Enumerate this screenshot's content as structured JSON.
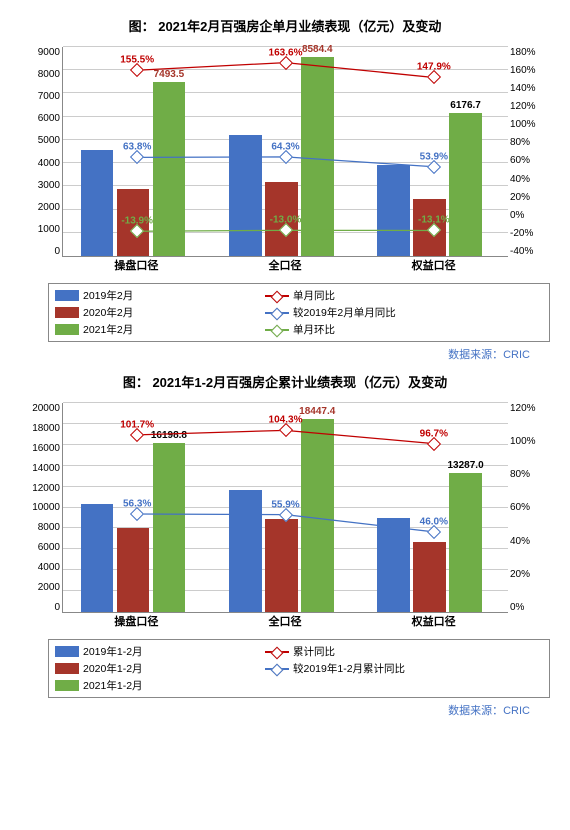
{
  "source_text": "数据来源：CRIC",
  "source_color": "#4472c4",
  "chart1": {
    "title": "图： 2021年2月百强房企单月业绩表现（亿元）及变动",
    "categories": [
      "操盘口径",
      "全口径",
      "权益口径"
    ],
    "left_axis": {
      "max": 9000,
      "step": 1000,
      "ticks": [
        "0",
        "1000",
        "2000",
        "3000",
        "4000",
        "5000",
        "6000",
        "7000",
        "8000",
        "9000"
      ]
    },
    "right_axis": {
      "min": -40,
      "max": 180,
      "step": 20,
      "ticks": [
        "-40%",
        "-20%",
        "0%",
        "20%",
        "40%",
        "60%",
        "80%",
        "100%",
        "120%",
        "140%",
        "160%",
        "180%"
      ]
    },
    "bars": [
      {
        "label": "2019年2月",
        "color": "#4472c4",
        "values": [
          4550,
          5200,
          3900
        ]
      },
      {
        "label": "2020年2月",
        "color": "#a5352a",
        "values": [
          2900,
          3200,
          2450
        ]
      },
      {
        "label": "2021年2月",
        "color": "#70ad47",
        "values": [
          7493.5,
          8584.4,
          6176.7
        ],
        "show_labels": [
          "7493.5",
          "8584.4",
          "6176.7"
        ],
        "label_colors": [
          "#a5352a",
          "#a5352a",
          "#000"
        ]
      }
    ],
    "lines": [
      {
        "label": "单月同比",
        "color": "#c00000",
        "values": [
          155.5,
          163.6,
          147.9
        ],
        "labels": [
          "155.5%",
          "163.6%",
          "147.9%"
        ],
        "label_color": "#c00000"
      },
      {
        "label": "较2019年2月单月同比",
        "color": "#4472c4",
        "values": [
          63.8,
          64.3,
          53.9
        ],
        "labels": [
          "63.8%",
          "64.3%",
          "53.9%"
        ],
        "label_color": "#4472c4"
      },
      {
        "label": "单月环比",
        "color": "#70ad47",
        "values": [
          -13.9,
          -13.0,
          -13.1
        ],
        "labels": [
          "-13.9%",
          "-13.0%",
          "-13.1%"
        ],
        "label_color": "#70ad47"
      }
    ]
  },
  "chart2": {
    "title": "图： 2021年1-2月百强房企累计业绩表现（亿元）及变动",
    "categories": [
      "操盘口径",
      "全口径",
      "权益口径"
    ],
    "left_axis": {
      "max": 20000,
      "step": 2000,
      "ticks": [
        "0",
        "2000",
        "4000",
        "6000",
        "8000",
        "10000",
        "12000",
        "14000",
        "16000",
        "18000",
        "20000"
      ]
    },
    "right_axis": {
      "min": 0,
      "max": 120,
      "step": 20,
      "ticks": [
        "0%",
        "20%",
        "40%",
        "60%",
        "80%",
        "100%",
        "120%"
      ]
    },
    "bars": [
      {
        "label": "2019年1-2月",
        "color": "#4472c4",
        "values": [
          10300,
          11700,
          9000
        ]
      },
      {
        "label": "2020年1-2月",
        "color": "#a5352a",
        "values": [
          8000,
          8900,
          6700
        ]
      },
      {
        "label": "2021年1-2月",
        "color": "#70ad47",
        "values": [
          16198.8,
          18447.4,
          13287.0
        ],
        "show_labels": [
          "16198.8",
          "18447.4",
          "13287.0"
        ],
        "label_colors": [
          "#000",
          "#a5352a",
          "#000"
        ]
      }
    ],
    "lines": [
      {
        "label": "累计同比",
        "color": "#c00000",
        "values": [
          101.7,
          104.3,
          96.7
        ],
        "labels": [
          "101.7%",
          "104.3%",
          "96.7%"
        ],
        "label_color": "#c00000"
      },
      {
        "label": "较2019年1-2月累计同比",
        "color": "#4472c4",
        "values": [
          56.3,
          55.9,
          46.0
        ],
        "labels": [
          "56.3%",
          "55.9%",
          "46.0%"
        ],
        "label_color": "#4472c4"
      }
    ]
  }
}
